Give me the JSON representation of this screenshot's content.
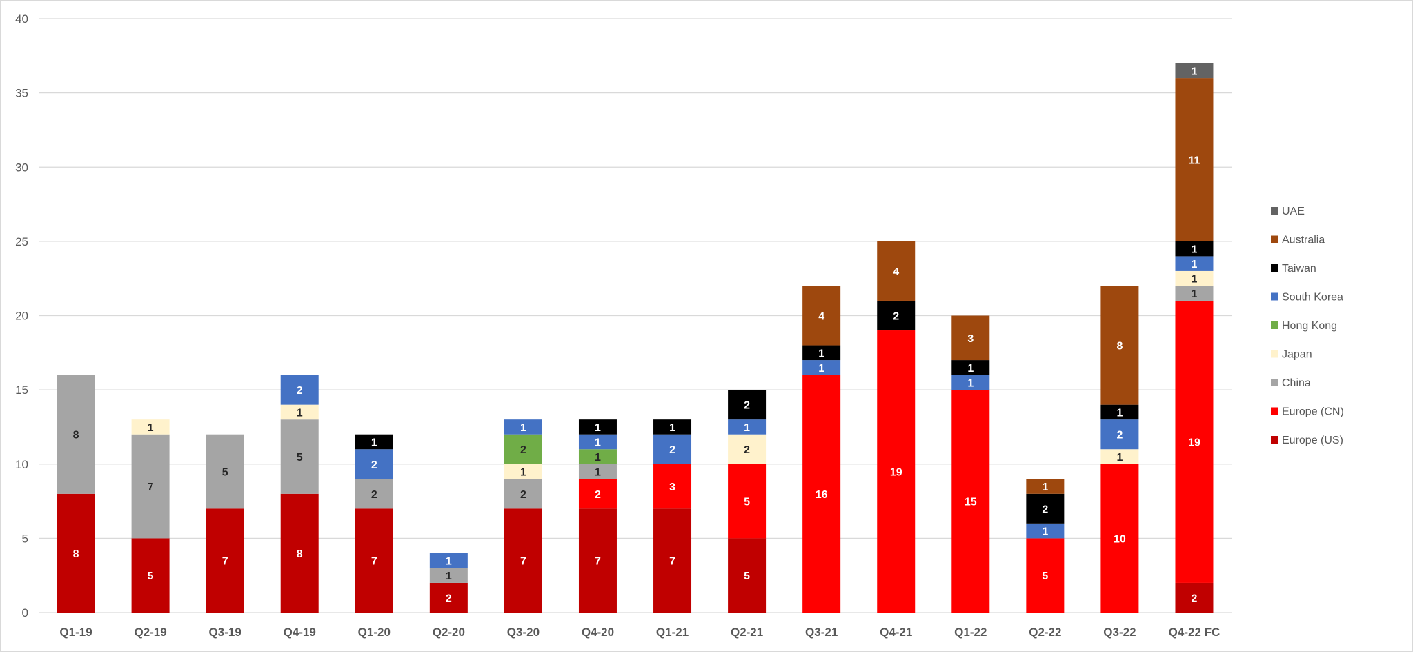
{
  "chart_data": {
    "type": "bar",
    "stacked": true,
    "title": "",
    "xlabel": "",
    "ylabel": "",
    "ylim": [
      0,
      40
    ],
    "yticks": [
      0,
      5,
      10,
      15,
      20,
      25,
      30,
      35,
      40
    ],
    "grid": true,
    "legend_position": "right",
    "categories": [
      "Q1-19",
      "Q2-19",
      "Q3-19",
      "Q4-19",
      "Q1-20",
      "Q2-20",
      "Q3-20",
      "Q4-20",
      "Q1-21",
      "Q2-21",
      "Q3-21",
      "Q4-21",
      "Q1-22",
      "Q2-22",
      "Q3-22",
      "Q4-22 FC"
    ],
    "series": [
      {
        "name": "Europe (US)",
        "color": "#C00000",
        "label_color": "#ffffff",
        "values": [
          8,
          5,
          7,
          8,
          7,
          2,
          7,
          7,
          7,
          5,
          0,
          0,
          0,
          0,
          0,
          2
        ]
      },
      {
        "name": "Europe (CN)",
        "color": "#FF0000",
        "label_color": "#ffffff",
        "values": [
          0,
          0,
          0,
          0,
          0,
          0,
          0,
          2,
          3,
          5,
          16,
          19,
          15,
          5,
          10,
          19
        ]
      },
      {
        "name": "China",
        "color": "#A5A5A5",
        "label_color": "#262626",
        "values": [
          8,
          7,
          5,
          5,
          2,
          1,
          2,
          1,
          0,
          0,
          0,
          0,
          0,
          0,
          0,
          1
        ]
      },
      {
        "name": "Japan",
        "color": "#FFF2CC",
        "label_color": "#262626",
        "values": [
          0,
          1,
          0,
          1,
          0,
          0,
          1,
          0,
          0,
          2,
          0,
          0,
          0,
          0,
          1,
          1
        ]
      },
      {
        "name": "Hong Kong",
        "color": "#70AD47",
        "label_color": "#262626",
        "values": [
          0,
          0,
          0,
          0,
          0,
          0,
          2,
          1,
          0,
          0,
          0,
          0,
          0,
          0,
          0,
          0
        ]
      },
      {
        "name": "South Korea",
        "color": "#4472C4",
        "label_color": "#ffffff",
        "values": [
          0,
          0,
          0,
          2,
          2,
          1,
          1,
          1,
          2,
          1,
          1,
          0,
          1,
          1,
          2,
          1
        ]
      },
      {
        "name": "Taiwan",
        "color": "#000000",
        "label_color": "#ffffff",
        "values": [
          0,
          0,
          0,
          0,
          1,
          0,
          0,
          1,
          1,
          2,
          1,
          2,
          1,
          2,
          1,
          1
        ]
      },
      {
        "name": "Australia",
        "color": "#9E480E",
        "label_color": "#ffffff",
        "values": [
          0,
          0,
          0,
          0,
          0,
          0,
          0,
          0,
          0,
          0,
          4,
          4,
          3,
          1,
          8,
          11
        ]
      },
      {
        "name": "UAE",
        "color": "#636363",
        "label_color": "#ffffff",
        "values": [
          0,
          0,
          0,
          0,
          0,
          0,
          0,
          0,
          0,
          0,
          0,
          0,
          0,
          0,
          0,
          1
        ]
      }
    ]
  }
}
